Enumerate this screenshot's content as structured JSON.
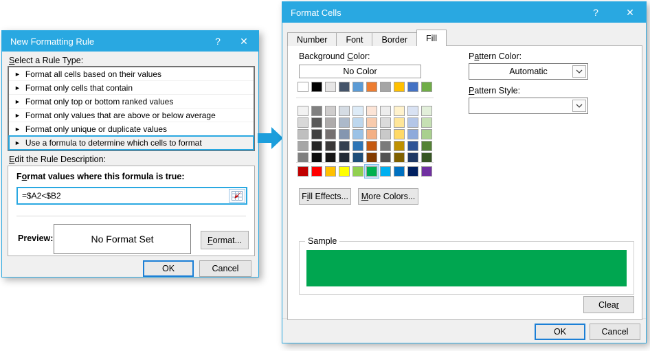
{
  "accent": {
    "titlebar": "#29a8e1",
    "focus_border": "#29a8e1",
    "ok_border": "#1b7fd6",
    "arrow": "#1c9edc"
  },
  "new_formatting_rule": {
    "title": "New Formatting Rule",
    "help": "?",
    "close": "✕",
    "rule_bullet": "►",
    "select_label": {
      "u": "S",
      "post": "elect a Rule Type:"
    },
    "rules": [
      "Format all cells based on their values",
      "Format only cells that contain",
      "Format only top or bottom ranked values",
      "Format only values that are above or below average",
      "Format only unique or duplicate values",
      "Use a formula to determine which cells to format"
    ],
    "selected_rule_index": 5,
    "edit_label": {
      "u": "E",
      "post": "dit the Rule Description:"
    },
    "formula_label": {
      "pre": "F",
      "u": "o",
      "post": "rmat values where this formula is true:"
    },
    "formula_value": "=$A2<$B2",
    "preview_label": "Preview:",
    "preview_value": "No Format Set",
    "format_button": {
      "u": "F",
      "post": "ormat..."
    },
    "ok": "OK",
    "cancel": "Cancel"
  },
  "format_cells": {
    "title": "Format Cells",
    "help": "?",
    "close": "✕",
    "tabs": [
      {
        "label": "Number"
      },
      {
        "label": "Font"
      },
      {
        "label": "Border"
      },
      {
        "label": "Fill",
        "active": true
      }
    ],
    "background_color_label": {
      "pre": "Background ",
      "u": "C",
      "post": "olor:"
    },
    "no_color_button": "No Color",
    "pattern_color_label": {
      "pre": "P",
      "u": "a",
      "post": "ttern Color:"
    },
    "pattern_color_value": "Automatic",
    "pattern_style_label": {
      "u": "P",
      "post": "attern Style:"
    },
    "pattern_style_value": "",
    "fill_effects_button": {
      "pre": "F",
      "u": "i",
      "post": "ll Effects..."
    },
    "more_colors_button": {
      "u": "M",
      "post": "ore Colors..."
    },
    "sample_label": "Sample",
    "sample_color": "#00A650",
    "clear_button": {
      "pre": "Clea",
      "u": "r"
    },
    "ok": "OK",
    "cancel": "Cancel",
    "palette": {
      "theme_row": [
        "#FFFFFF",
        "#000000",
        "#E7E6E6",
        "#44546A",
        "#5B9BD5",
        "#ED7D31",
        "#A5A5A5",
        "#FFC000",
        "#4472C4",
        "#70AD47"
      ],
      "variant_rows": [
        [
          "#F2F2F2",
          "#808080",
          "#CFCDCD",
          "#D5DCE4",
          "#DDEBF7",
          "#FCE4D6",
          "#EDEDED",
          "#FFF2CC",
          "#D9E2F3",
          "#E2EFDA"
        ],
        [
          "#D8D8D8",
          "#595959",
          "#AEABAB",
          "#ACB9CA",
          "#BDD7EE",
          "#F8CBAD",
          "#DBDBDB",
          "#FFE699",
          "#B4C6E7",
          "#C6E0B4"
        ],
        [
          "#BFBFBF",
          "#404040",
          "#757070",
          "#8496B0",
          "#9BC2E6",
          "#F4B084",
          "#C9C9C9",
          "#FFD966",
          "#8EAADB",
          "#A9D08E"
        ],
        [
          "#A6A6A6",
          "#262626",
          "#3A3838",
          "#333F50",
          "#2E75B6",
          "#C55A11",
          "#7B7B7B",
          "#BF9000",
          "#2F5496",
          "#548235"
        ],
        [
          "#7F7F7F",
          "#0D0D0D",
          "#171616",
          "#222A35",
          "#1F4E79",
          "#833C00",
          "#525252",
          "#7F6000",
          "#1F3864",
          "#375623"
        ]
      ],
      "standard_row": [
        "#C00000",
        "#FF0000",
        "#FFC000",
        "#FFFF00",
        "#92D050",
        "#00B050",
        "#00B0F0",
        "#0070C0",
        "#002060",
        "#7030A0"
      ],
      "standard_selected_index": 5
    }
  }
}
